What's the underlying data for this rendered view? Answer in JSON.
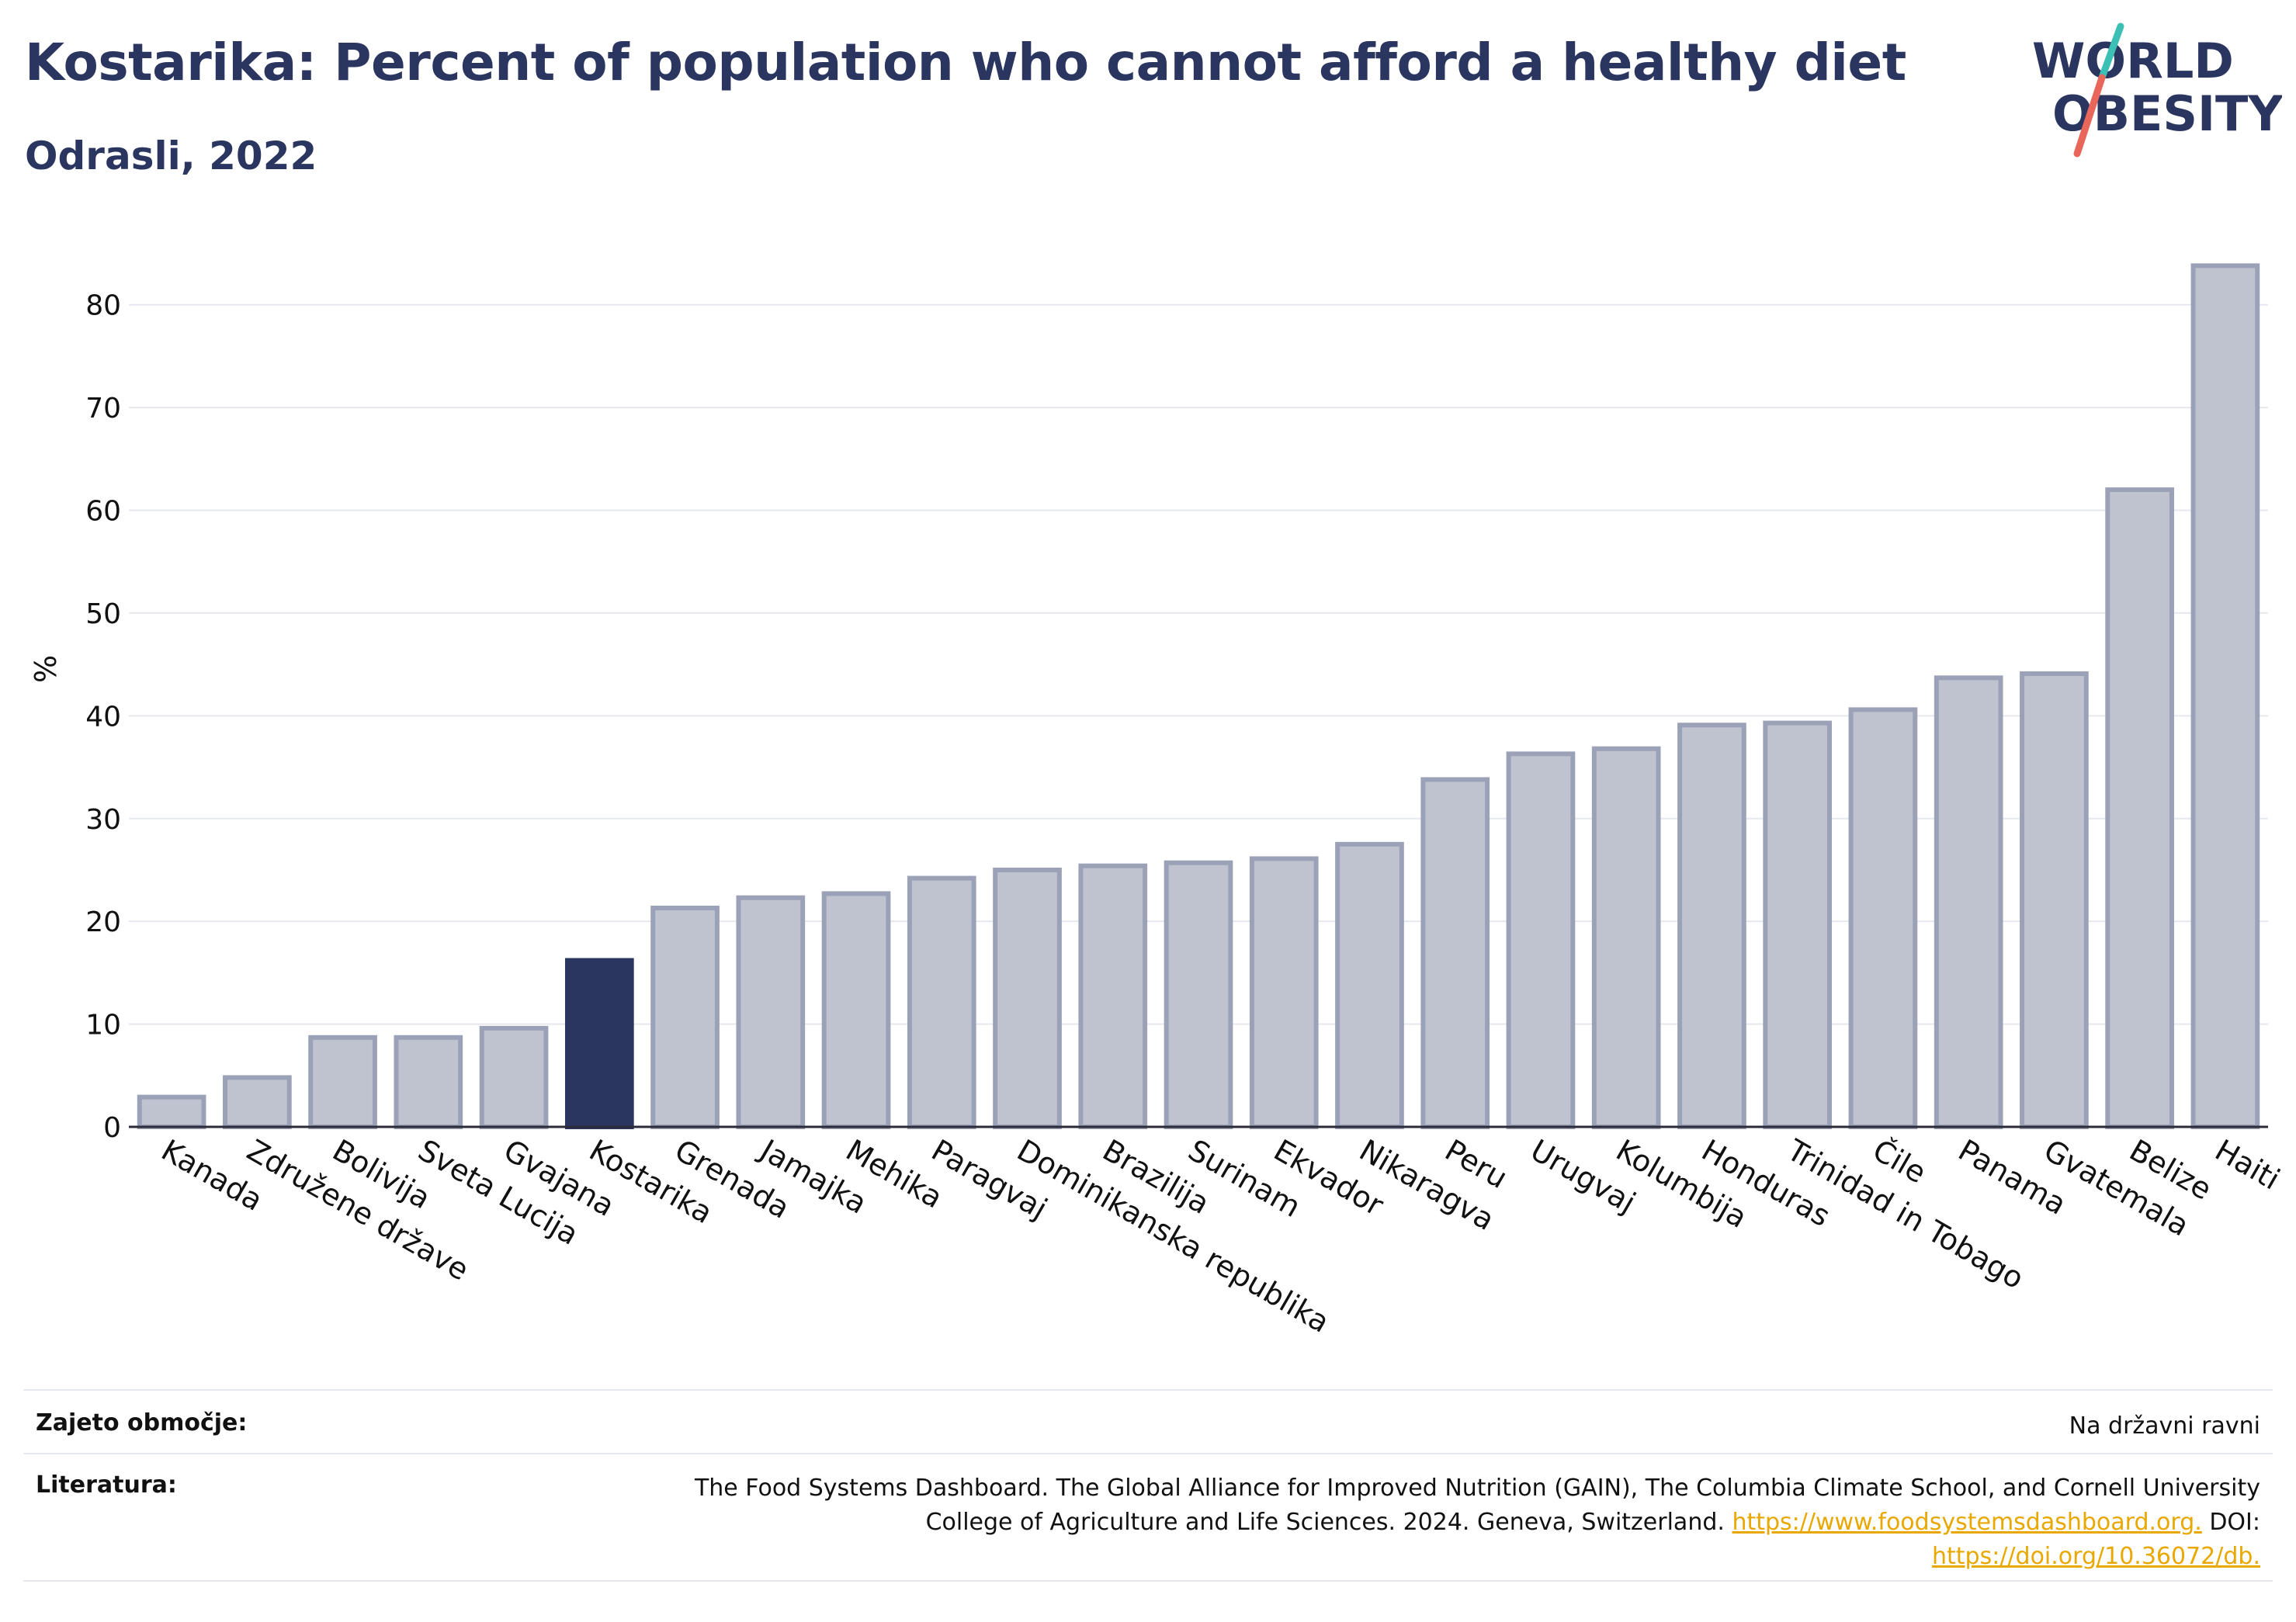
{
  "header": {
    "title": "Kostarika: Percent of population who cannot afford a healthy diet",
    "subtitle": "Odrasli, 2022"
  },
  "logo": {
    "line1": "WORLD",
    "line2": "OBESITY",
    "colors": {
      "text": "#2b3660",
      "slash_top": "#3cbfb4",
      "slash_bottom": "#e8675a"
    }
  },
  "chart_data": {
    "type": "bar",
    "title": "Kostarika: Percent of population who cannot afford a healthy diet",
    "subtitle": "Odrasli, 2022",
    "xlabel": "",
    "ylabel": "%",
    "ylim": [
      0,
      87
    ],
    "yticks": [
      0,
      10,
      20,
      30,
      40,
      50,
      60,
      70,
      80
    ],
    "grid": true,
    "highlight": "Kostarika",
    "colors": {
      "bar": "#bfc3d0",
      "bar_edge": "#9ba2b8",
      "highlight": "#2b3660",
      "grid": "#e6e8ef"
    },
    "categories": [
      "Kanada",
      "Združene države",
      "Bolivija",
      "Sveta Lucija",
      "Gvajana",
      "Kostarika",
      "Grenada",
      "Jamajka",
      "Mehika",
      "Paragvaj",
      "Dominikanska republika",
      "Brazilija",
      "Surinam",
      "Ekvador",
      "Nikaragva",
      "Peru",
      "Urugvaj",
      "Kolumbija",
      "Honduras",
      "Trinidad in Tobago",
      "Čile",
      "Panama",
      "Gvatemala",
      "Belize",
      "Haiti"
    ],
    "values": [
      2.9,
      4.8,
      8.7,
      8.7,
      9.6,
      16.2,
      21.3,
      22.3,
      22.7,
      24.2,
      25.0,
      25.4,
      25.7,
      26.1,
      27.5,
      33.8,
      36.3,
      36.8,
      39.1,
      39.3,
      40.6,
      43.7,
      44.1,
      62.0,
      83.8
    ]
  },
  "footer": {
    "coverage_label": "Zajeto območje:",
    "coverage_value": "Na državni ravni",
    "source_label": "Literatura:",
    "source_line1": "The Food Systems Dashboard. The Global Alliance for Improved Nutrition (GAIN), The Columbia Climate School, and Cornell University",
    "source_line2": "College of Agriculture and Life Sciences. 2024. Geneva, Switzerland.",
    "source_link1": "https://www.foodsystemsdashboard.org.",
    "source_doi_label": "DOI:",
    "source_link2": "https://doi.org/10.36072/db."
  }
}
